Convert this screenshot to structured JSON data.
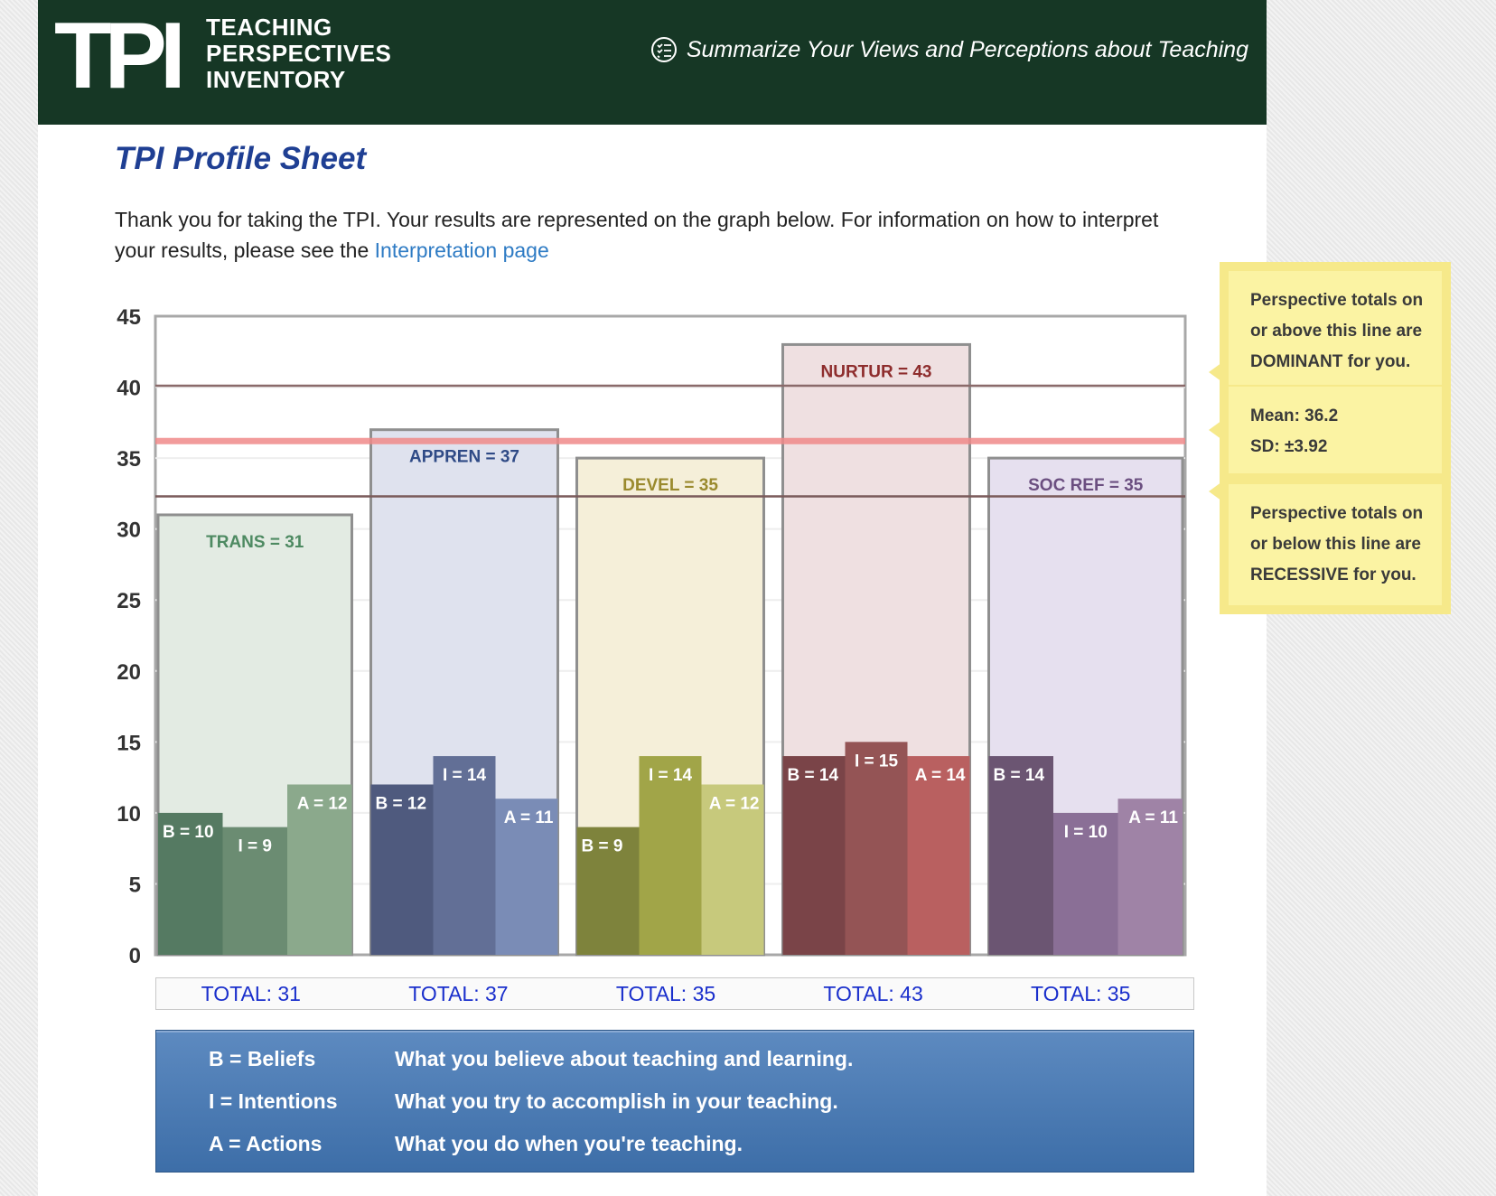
{
  "header": {
    "logo_letters": "TPI",
    "logo_line1": "TEACHING",
    "logo_line2": "PERSPECTIVES",
    "logo_line3": "INVENTORY",
    "tagline": "Summarize Your Views and Perceptions about Teaching",
    "tagline_icon": "checklist-icon"
  },
  "page_title": "TPI Profile Sheet",
  "intro": {
    "text1": "Thank you for taking the TPI. Your results are represented on the graph below. For information on how to interpret your results, please see the ",
    "link": "Interpretation page"
  },
  "chart_data": {
    "type": "bar",
    "ylim": [
      0,
      45
    ],
    "yticks": [
      0,
      5,
      10,
      15,
      20,
      25,
      30,
      35,
      40,
      45
    ],
    "grid": true,
    "perspectives": [
      {
        "label": "TRANS = 31",
        "total": 31,
        "total_label": "TOTAL:  31",
        "colors": {
          "bg": "#e3ebe3",
          "label": "#4e8a62",
          "b": "#557a62",
          "i": "#6b8c72",
          "a": "#8ba98c"
        },
        "parts": [
          {
            "label": "B = 10",
            "value": 10
          },
          {
            "label": "I = 9",
            "value": 9
          },
          {
            "label": "A = 12",
            "value": 12
          }
        ]
      },
      {
        "label": "APPREN = 37",
        "total": 37,
        "total_label": "TOTAL:  37",
        "colors": {
          "bg": "#dfe2ee",
          "label": "#2f4a86",
          "b": "#4f5a7e",
          "i": "#626f96",
          "a": "#7a8cb6"
        },
        "parts": [
          {
            "label": "B = 12",
            "value": 12
          },
          {
            "label": "I = 14",
            "value": 14
          },
          {
            "label": "A = 11",
            "value": 11
          }
        ]
      },
      {
        "label": "DEVEL = 35",
        "total": 35,
        "total_label": "TOTAL:  35",
        "colors": {
          "bg": "#f5efd9",
          "label": "#9a8a2e",
          "b": "#7e833c",
          "i": "#a1a548",
          "a": "#c7c97c"
        },
        "parts": [
          {
            "label": "B = 9",
            "value": 9
          },
          {
            "label": "I = 14",
            "value": 14
          },
          {
            "label": "A = 12",
            "value": 12
          }
        ]
      },
      {
        "label": "NURTUR = 43",
        "total": 43,
        "total_label": "TOTAL:  43",
        "colors": {
          "bg": "#efe0e1",
          "label": "#8e2d2d",
          "b": "#7a4448",
          "i": "#945455",
          "a": "#b96060"
        },
        "parts": [
          {
            "label": "B = 14",
            "value": 14
          },
          {
            "label": "I = 15",
            "value": 15
          },
          {
            "label": "A = 14",
            "value": 14
          }
        ]
      },
      {
        "label": "SOC REF = 35",
        "total": 35,
        "total_label": "TOTAL:  35",
        "colors": {
          "bg": "#e6e0ef",
          "label": "#6b4f80",
          "b": "#6b5572",
          "i": "#8a6f96",
          "a": "#9f83a6"
        },
        "parts": [
          {
            "label": "B = 14",
            "value": 14
          },
          {
            "label": "I = 10",
            "value": 10
          },
          {
            "label": "A = 11",
            "value": 11
          }
        ]
      }
    ],
    "reference_lines": {
      "dominant": 40.1,
      "mean": 36.2,
      "recessive": 32.3,
      "colors": {
        "dominant": "#8a6a6a",
        "mean": "#f08a8a",
        "recessive": "#7a5a5a"
      }
    }
  },
  "notes": {
    "dominant": [
      "Perspective totals on",
      "or above this line are",
      "DOMINANT for you."
    ],
    "mean": [
      "Mean: 36.2",
      "SD: ±3.92"
    ],
    "recessive": [
      "Perspective totals on",
      "or below this line are",
      "RECESSIVE for you."
    ]
  },
  "legend": [
    {
      "key": "B = Beliefs",
      "desc": "What you believe about teaching and learning."
    },
    {
      "key": "I = Intentions",
      "desc": "What you try to accomplish in your teaching."
    },
    {
      "key": "A = Actions",
      "desc": "What you do when you're teaching."
    }
  ]
}
